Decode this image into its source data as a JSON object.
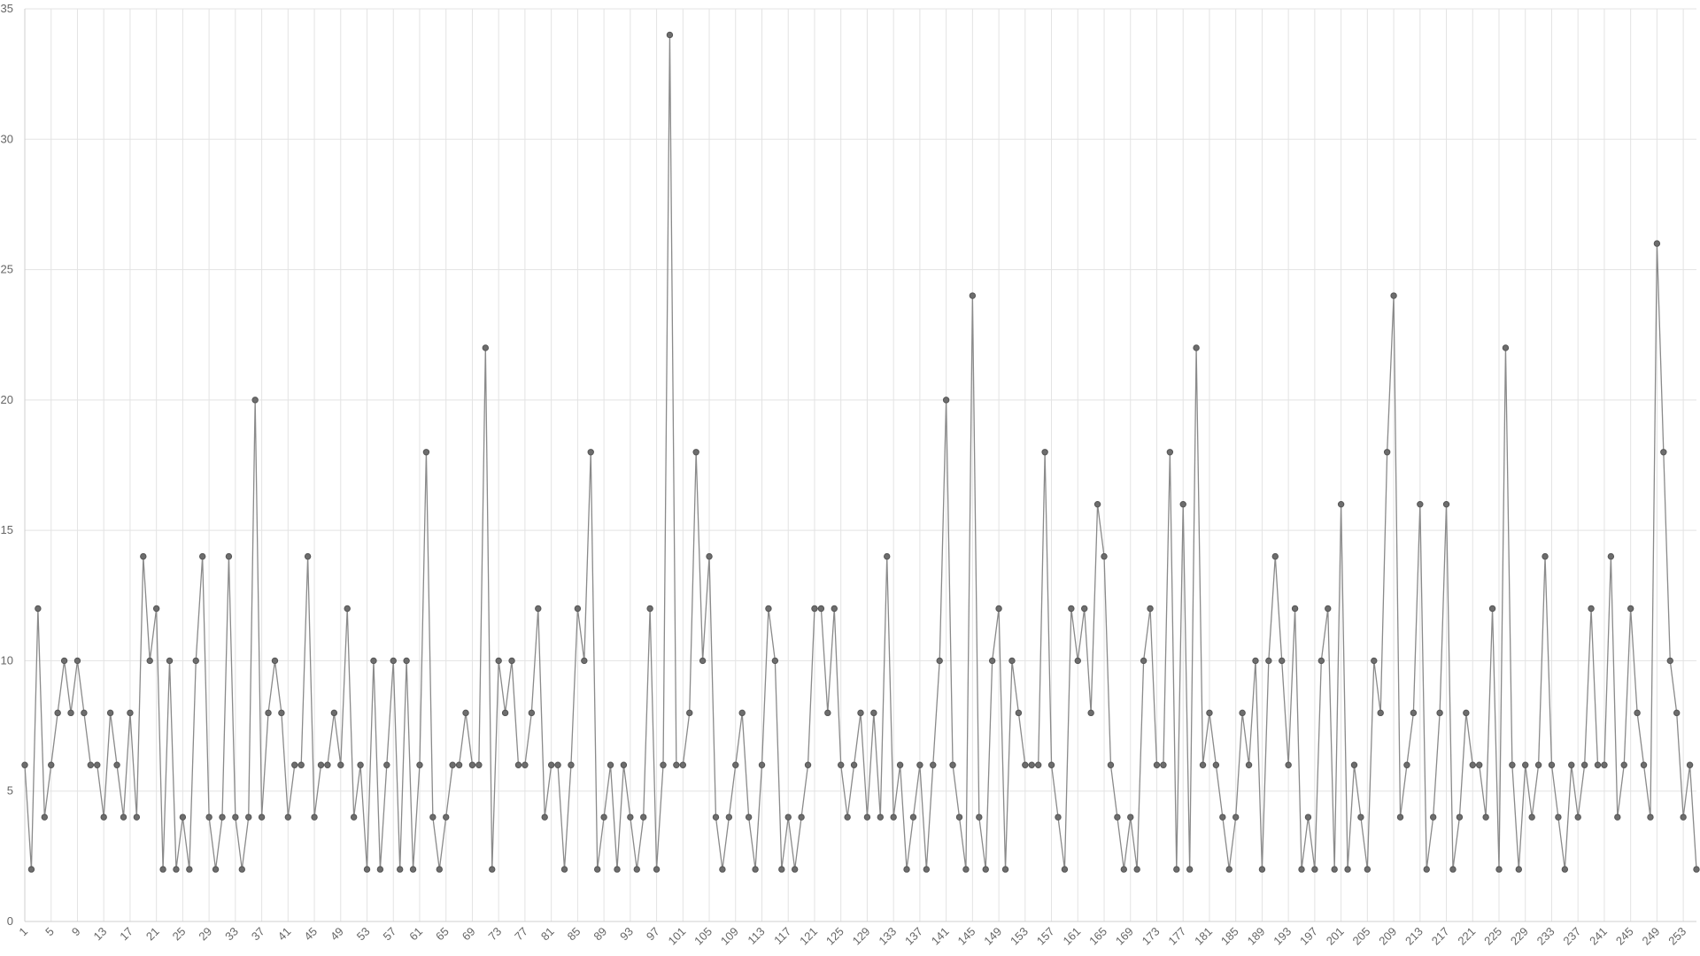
{
  "chart_data": {
    "type": "line",
    "title": "",
    "xlabel": "",
    "ylabel": "",
    "ylim": [
      0,
      35
    ],
    "yticks": [
      0,
      5,
      10,
      15,
      20,
      25,
      30,
      35
    ],
    "xlim": [
      1,
      256
    ],
    "x_tick_step": 4,
    "grid": true,
    "legend": "none",
    "colors": {
      "line": "#8a8a8a",
      "point": "#6d6d6d",
      "grid": "#e3e3e3",
      "text": "#666666"
    },
    "series": [
      {
        "values": [
          6,
          2,
          12,
          4,
          6,
          8,
          10,
          8,
          10,
          8,
          6,
          6,
          4,
          8,
          6,
          4,
          8,
          4,
          14,
          10,
          12,
          2,
          10,
          2,
          4,
          2,
          10,
          14,
          4,
          2,
          4,
          14,
          4,
          2,
          4,
          20,
          4,
          8,
          10,
          8,
          4,
          6,
          6,
          14,
          4,
          6,
          6,
          8,
          6,
          12,
          4,
          6,
          2,
          10,
          2,
          6,
          10,
          2,
          10,
          2,
          6,
          18,
          4,
          2,
          4,
          6,
          6,
          8,
          6,
          6,
          22,
          2,
          10,
          8,
          10,
          6,
          6,
          8,
          12,
          4,
          6,
          6,
          2,
          6,
          12,
          10,
          18,
          2,
          4,
          6,
          2,
          6,
          4,
          2,
          4,
          12,
          2,
          6,
          34,
          6,
          6,
          8,
          18,
          10,
          14,
          4,
          2,
          4,
          6,
          8,
          4,
          2,
          6,
          12,
          10,
          2,
          4,
          2,
          4,
          6,
          12,
          12,
          8,
          12,
          6,
          4,
          6,
          8,
          4,
          8,
          4,
          14,
          4,
          6,
          2,
          4,
          6,
          2,
          6,
          10,
          20,
          6,
          4,
          2,
          24,
          4,
          2,
          10,
          12,
          2,
          10,
          8,
          6,
          6,
          6,
          18,
          6,
          4,
          2,
          12,
          10,
          12,
          8,
          16,
          14,
          6,
          4,
          2,
          4,
          2,
          10,
          12,
          6,
          6,
          18,
          2,
          16,
          2,
          22,
          6,
          8,
          6,
          4,
          2,
          4,
          8,
          6,
          10,
          2,
          10,
          14,
          10,
          6,
          12,
          2,
          4,
          2,
          10,
          12,
          2,
          16,
          2,
          6,
          4,
          2,
          10,
          8,
          18,
          24,
          4,
          6,
          8,
          16,
          2,
          4,
          8,
          16,
          2,
          4,
          8,
          6,
          6,
          4,
          12,
          2,
          22,
          6,
          2,
          6,
          4,
          6,
          14,
          6,
          4,
          2,
          6,
          4,
          6,
          12,
          6,
          6,
          14,
          4,
          6,
          12,
          8,
          6,
          4,
          26,
          18,
          10,
          8,
          4,
          6,
          2
        ]
      }
    ]
  }
}
